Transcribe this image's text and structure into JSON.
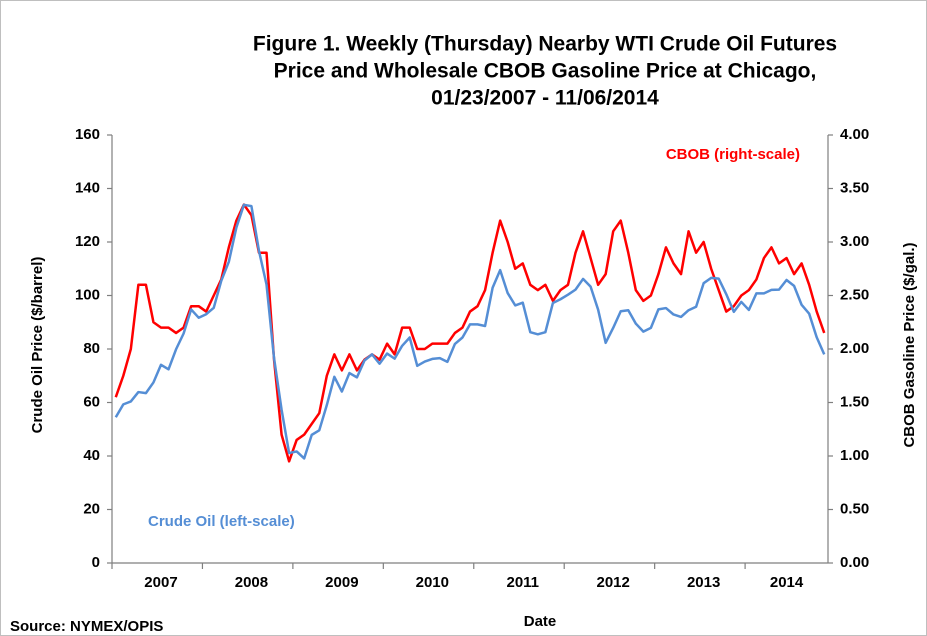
{
  "chart_data": {
    "type": "line",
    "title": [
      "Figure 1. Weekly (Thursday) Nearby WTI Crude Oil Futures",
      "Price and Wholesale CBOB Gasoline Price at Chicago,",
      "01/23/2007 - 11/06/2014"
    ],
    "xlabel": "Date",
    "ylabel": "Crude Oil Price ($/barrel)",
    "y2label": "CBOB Gasoline Price ($/gal.)",
    "source": "Source: NYMEX/OPIS",
    "categories": [
      null,
      null,
      null,
      null,
      null,
      null,
      "2007",
      null,
      null,
      null,
      null,
      null,
      null,
      null,
      null,
      null,
      null,
      null,
      "2008",
      null,
      null,
      null,
      null,
      null,
      null,
      null,
      null,
      null,
      null,
      null,
      "2009",
      null,
      null,
      null,
      null,
      null,
      null,
      null,
      null,
      null,
      null,
      null,
      "2010",
      null,
      null,
      null,
      null,
      null,
      null,
      null,
      null,
      null,
      null,
      null,
      "2011",
      null,
      null,
      null,
      null,
      null,
      null,
      null,
      null,
      null,
      null,
      null,
      "2012",
      null,
      null,
      null,
      null,
      null,
      null,
      null,
      null,
      null,
      null,
      null,
      "2013",
      null,
      null,
      null,
      null,
      null,
      null,
      null,
      null,
      null,
      null,
      "2014",
      null,
      null,
      null,
      null,
      null
    ],
    "ylim": [
      0,
      160
    ],
    "yticks": [
      0,
      20,
      40,
      60,
      80,
      100,
      120,
      140,
      160
    ],
    "y2lim": [
      0,
      4
    ],
    "y2ticks": [
      {
        "value": 0,
        "label": "0.00"
      },
      {
        "value": 0.5,
        "label": "0.50"
      },
      {
        "value": 1,
        "label": "1.00"
      },
      {
        "value": 1.5,
        "label": "1.50"
      },
      {
        "value": 2,
        "label": "2.00"
      },
      {
        "value": 2.5,
        "label": "2.50"
      },
      {
        "value": 3,
        "label": "3.00"
      },
      {
        "value": 3.5,
        "label": "3.50"
      },
      {
        "value": 4,
        "label": "4.00"
      }
    ],
    "grid": false,
    "series": [
      {
        "name": "CBOB (right-scale)",
        "color": "#ff0000",
        "axis": "y2",
        "values": [
          1.55,
          1.75,
          2.0,
          2.6,
          2.6,
          2.25,
          2.2,
          2.2,
          2.15,
          2.2,
          2.4,
          2.4,
          2.35,
          2.5,
          2.65,
          2.95,
          3.2,
          3.35,
          3.25,
          2.9,
          2.9,
          1.9,
          1.2,
          0.95,
          1.15,
          1.2,
          1.3,
          1.4,
          1.75,
          1.95,
          1.8,
          1.95,
          1.8,
          1.9,
          1.95,
          1.9,
          2.05,
          1.95,
          2.2,
          2.2,
          2.0,
          2.0,
          2.05,
          2.05,
          2.05,
          2.15,
          2.2,
          2.35,
          2.4,
          2.55,
          2.9,
          3.2,
          3.0,
          2.75,
          2.8,
          2.6,
          2.55,
          2.6,
          2.45,
          2.55,
          2.6,
          2.9,
          3.1,
          2.85,
          2.6,
          2.7,
          3.1,
          3.2,
          2.9,
          2.55,
          2.45,
          2.5,
          2.7,
          2.95,
          2.8,
          2.7,
          3.1,
          2.9,
          3.0,
          2.75,
          2.55,
          2.35,
          2.4,
          2.5,
          2.55,
          2.65,
          2.85,
          2.95,
          2.8,
          2.85,
          2.7,
          2.8,
          2.6,
          2.35,
          2.15
        ]
      },
      {
        "name": "Crude Oil (left-scale)",
        "color": "#558ed5",
        "values": [
          54.5,
          59.3,
          60.4,
          63.9,
          63.5,
          67.5,
          74.1,
          72.4,
          79.9,
          85.8,
          94.8,
          91.7,
          93.0,
          95.4,
          105.5,
          112.6,
          125.4,
          133.9,
          133.4,
          116.7,
          104.1,
          76.6,
          57.3,
          41.1,
          41.7,
          39.1,
          47.9,
          49.6,
          59.0,
          69.6,
          64.1,
          71.0,
          69.4,
          75.7,
          78.0,
          74.5,
          78.3,
          76.4,
          81.2,
          84.3,
          73.7,
          75.3,
          76.3,
          76.6,
          75.2,
          81.9,
          84.3,
          89.2,
          89.2,
          88.6,
          102.9,
          109.5,
          100.9,
          96.3,
          97.3,
          86.3,
          85.5,
          86.3,
          97.2,
          98.6,
          100.3,
          102.2,
          106.2,
          103.3,
          94.7,
          82.3,
          87.9,
          94.1,
          94.5,
          89.5,
          86.5,
          87.9,
          94.8,
          95.3,
          92.9,
          92.0,
          94.5,
          95.8,
          104.6,
          106.6,
          106.3,
          100.5,
          93.9,
          97.6,
          94.6,
          100.8,
          100.8,
          102.1,
          102.2,
          105.8,
          103.6,
          96.5,
          93.2,
          84.4,
          78.0
        ]
      }
    ]
  }
}
